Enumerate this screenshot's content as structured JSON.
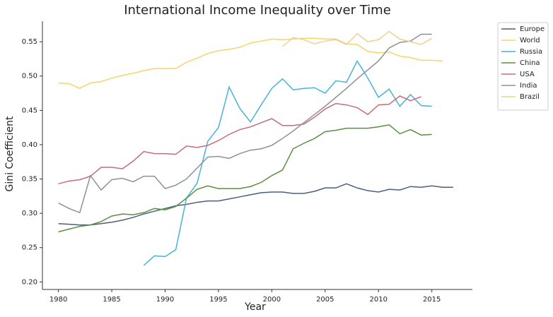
{
  "chart_data": {
    "type": "line",
    "title": "International Income Inequality over Time",
    "x_label": "Year",
    "y_label": "Gini Coefficient",
    "x": [
      1980,
      1981,
      1982,
      1983,
      1984,
      1985,
      1986,
      1987,
      1988,
      1989,
      1990,
      1991,
      1992,
      1993,
      1994,
      1995,
      1996,
      1997,
      1998,
      1999,
      2000,
      2001,
      2002,
      2003,
      2004,
      2005,
      2006,
      2007,
      2008,
      2009,
      2010,
      2011,
      2012,
      2013,
      2014,
      2015,
      2016,
      2017
    ],
    "series": [
      {
        "name": "Europe",
        "color": "#4a5f7e",
        "values": [
          0.285,
          0.284,
          0.283,
          0.283,
          0.285,
          0.287,
          0.29,
          0.294,
          0.299,
          0.303,
          0.307,
          0.311,
          0.313,
          0.316,
          0.318,
          0.318,
          0.321,
          0.324,
          0.327,
          0.33,
          0.331,
          0.331,
          0.329,
          0.329,
          0.332,
          0.337,
          0.337,
          0.343,
          0.337,
          0.333,
          0.331,
          0.335,
          0.334,
          0.339,
          0.338,
          0.34,
          0.338,
          0.338
        ]
      },
      {
        "name": "World",
        "color": "#f7d36b",
        "values": [
          0.49,
          0.489,
          0.482,
          0.49,
          0.492,
          0.497,
          0.501,
          0.504,
          0.508,
          0.511,
          0.511,
          0.511,
          0.52,
          0.526,
          0.533,
          0.537,
          0.539,
          0.542,
          0.548,
          0.551,
          0.554,
          0.553,
          0.554,
          0.555,
          0.555,
          0.554,
          0.554,
          0.547,
          0.546,
          0.536,
          0.534,
          0.535,
          0.529,
          0.527,
          0.523,
          0.523,
          0.522,
          null
        ]
      },
      {
        "name": "Russia",
        "color": "#45b3d8",
        "values": [
          null,
          null,
          null,
          null,
          null,
          null,
          null,
          null,
          0.224,
          0.238,
          0.237,
          0.247,
          0.322,
          0.344,
          0.405,
          0.425,
          0.484,
          0.453,
          0.433,
          0.458,
          0.482,
          0.496,
          0.48,
          0.482,
          0.483,
          0.475,
          0.493,
          0.491,
          0.522,
          0.497,
          0.469,
          0.481,
          0.456,
          0.473,
          0.457,
          0.456,
          null,
          null
        ]
      },
      {
        "name": "China",
        "color": "#5a8f43",
        "values": [
          0.273,
          0.277,
          0.281,
          0.283,
          0.288,
          0.296,
          0.299,
          0.298,
          0.301,
          0.307,
          0.305,
          0.31,
          0.322,
          0.335,
          0.34,
          0.336,
          0.336,
          0.336,
          0.339,
          0.345,
          0.355,
          0.363,
          0.394,
          0.402,
          0.409,
          0.419,
          0.421,
          0.424,
          0.424,
          0.424,
          0.426,
          0.429,
          0.416,
          0.422,
          0.414,
          0.415,
          null,
          null
        ]
      },
      {
        "name": "USA",
        "color": "#c46c78",
        "values": [
          0.343,
          0.347,
          0.349,
          0.354,
          0.367,
          0.367,
          0.365,
          0.376,
          0.39,
          0.387,
          0.387,
          0.386,
          0.398,
          0.396,
          0.399,
          0.406,
          0.415,
          0.422,
          0.426,
          0.432,
          0.438,
          0.428,
          0.428,
          0.43,
          0.44,
          0.452,
          0.46,
          0.458,
          0.454,
          0.444,
          0.458,
          0.459,
          0.471,
          0.464,
          0.47,
          null,
          null,
          null
        ]
      },
      {
        "name": "India",
        "color": "#8e9099",
        "values": [
          0.315,
          0.307,
          0.301,
          0.355,
          0.334,
          0.349,
          0.351,
          0.346,
          0.354,
          0.354,
          0.336,
          0.341,
          0.35,
          0.366,
          0.382,
          0.383,
          0.38,
          0.387,
          0.392,
          0.394,
          0.399,
          0.409,
          0.42,
          0.432,
          0.444,
          0.456,
          0.469,
          0.482,
          0.496,
          0.509,
          0.522,
          0.541,
          0.549,
          0.551,
          0.561,
          0.561,
          null,
          null
        ]
      },
      {
        "name": "Brazil",
        "color": "#ecd391",
        "values": [
          null,
          null,
          null,
          null,
          null,
          null,
          null,
          null,
          null,
          null,
          null,
          null,
          null,
          null,
          null,
          null,
          null,
          null,
          null,
          null,
          null,
          0.543,
          0.556,
          0.553,
          0.547,
          0.551,
          0.553,
          0.546,
          0.562,
          0.55,
          0.553,
          0.565,
          0.554,
          0.55,
          0.546,
          0.555,
          null,
          null
        ]
      }
    ],
    "xlim": [
      1978.5,
      2018.8
    ],
    "xticks": [
      1980,
      1985,
      1990,
      1995,
      2000,
      2005,
      2010,
      2015
    ],
    "ylim": [
      0.189,
      0.58
    ],
    "yticks": [
      {
        "value": 0.2,
        "label": "0.20"
      },
      0.25,
      {
        "value": 0.3,
        "label": "0.30"
      },
      0.35,
      {
        "value": 0.4,
        "label": "0.40"
      },
      0.45,
      {
        "value": 0.5,
        "label": "0.50"
      },
      0.55
    ],
    "grid": false,
    "legend": "outside upper right"
  }
}
